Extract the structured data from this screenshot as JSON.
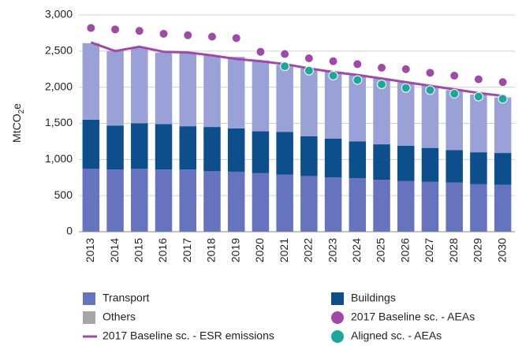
{
  "chart_data": {
    "type": "bar",
    "y_label": {
      "base": "MtCO",
      "sub": "2",
      "tail": "e"
    },
    "categories": [
      "2013",
      "2014",
      "2015",
      "2016",
      "2017",
      "2018",
      "2019",
      "2020",
      "2021",
      "2022",
      "2023",
      "2024",
      "2025",
      "2026",
      "2027",
      "2028",
      "2029",
      "2030"
    ],
    "ylim": [
      0,
      3000
    ],
    "yticks": [
      0,
      500,
      {
        "value": 1000,
        "label": "1,000"
      },
      {
        "value": 1500,
        "label": "1,500"
      },
      {
        "value": 2000,
        "label": "2,000"
      },
      {
        "value": 2500,
        "label": "2,500"
      },
      {
        "value": 3000,
        "label": "3,000"
      }
    ],
    "grid": true,
    "series": [
      {
        "name": "Transport",
        "type": "bar",
        "color": "#6673bf",
        "values": [
          870,
          860,
          870,
          860,
          860,
          840,
          830,
          810,
          790,
          770,
          750,
          740,
          720,
          700,
          690,
          680,
          660,
          650
        ]
      },
      {
        "name": "Buildings",
        "type": "bar",
        "color": "#0d4e8c",
        "values": [
          680,
          610,
          630,
          630,
          600,
          610,
          600,
          580,
          590,
          550,
          540,
          510,
          490,
          490,
          470,
          450,
          440,
          440
        ]
      },
      {
        "name": "Others",
        "type": "bar",
        "color": "#9aa1d6",
        "legend_color": "#a6a6a6",
        "values": [
          1060,
          1030,
          1050,
          990,
          1010,
          990,
          990,
          980,
          930,
          940,
          920,
          920,
          910,
          880,
          860,
          830,
          800,
          770
        ]
      },
      {
        "name": "2017 Baseline sc. - AEAs",
        "type": "scatter",
        "color": "#a04aa8",
        "values": [
          2820,
          2800,
          2780,
          2740,
          2720,
          2700,
          2680,
          2490,
          2460,
          2400,
          2360,
          2320,
          2270,
          2250,
          2200,
          2160,
          2110,
          2070
        ]
      },
      {
        "name": "2017 Baseline sc. - ESR emissions",
        "type": "line",
        "color": "#a04aa8",
        "values": [
          2620,
          2500,
          2560,
          2490,
          2480,
          2440,
          2390,
          2360,
          2320,
          2260,
          2210,
          2170,
          2120,
          2070,
          2020,
          1970,
          1920,
          1880
        ]
      },
      {
        "name": "Aligned sc. - AEAs",
        "type": "scatter",
        "color": "#1ba89a",
        "values": [
          null,
          null,
          null,
          null,
          null,
          null,
          null,
          null,
          2290,
          2230,
          2160,
          2100,
          2040,
          1990,
          1960,
          1910,
          1870,
          1840
        ]
      }
    ]
  }
}
